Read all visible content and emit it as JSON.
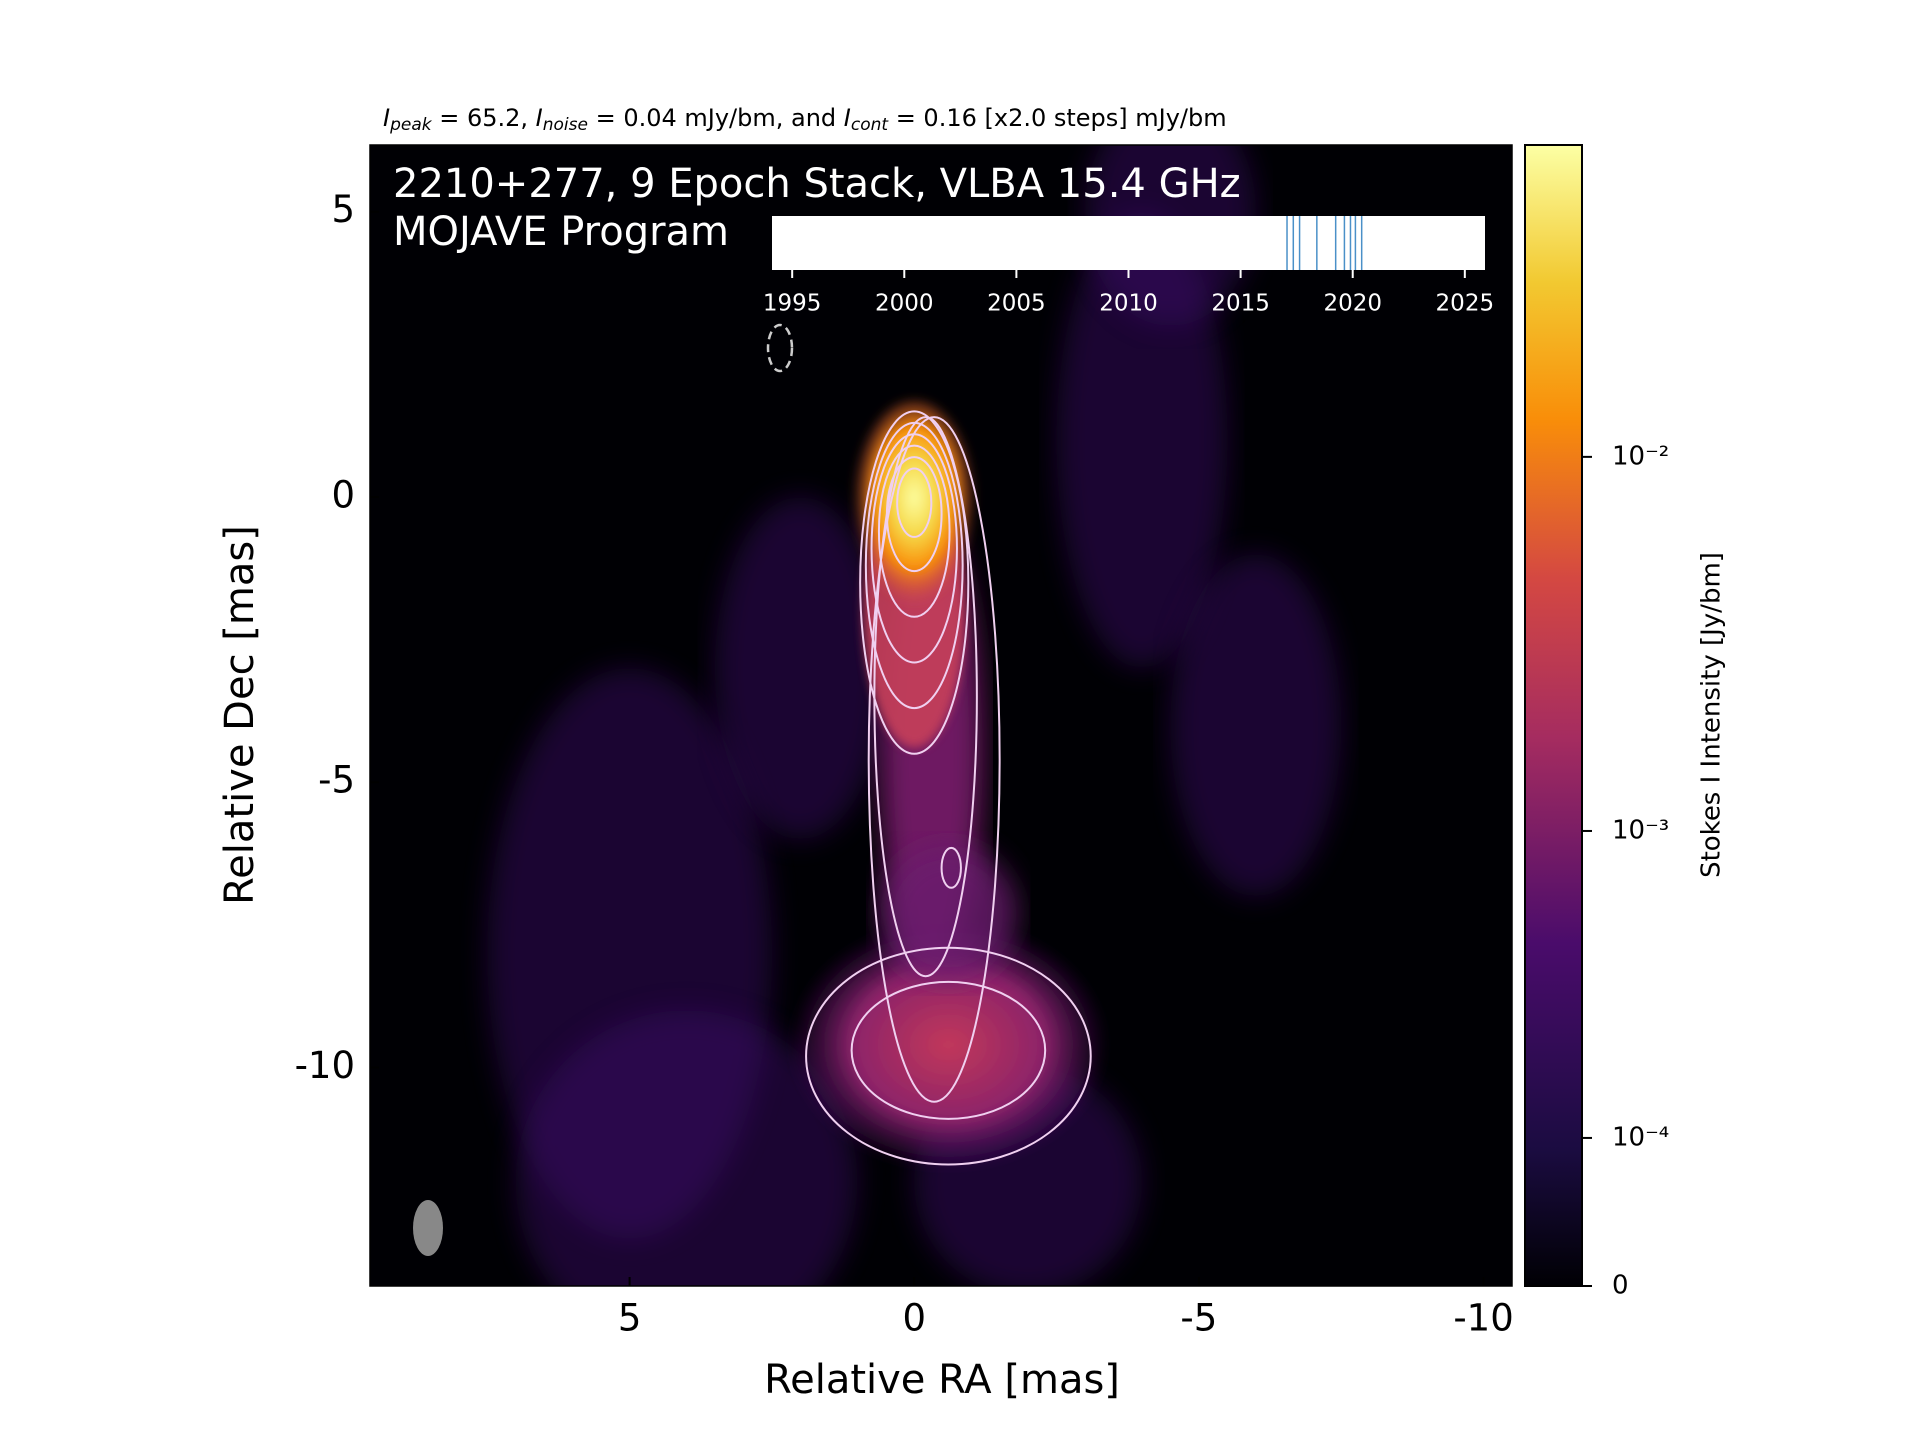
{
  "chart_data": {
    "type": "image",
    "title_parts": [
      "I",
      "peak",
      " = 65.2, ",
      "I",
      "noise",
      " = 0.04 mJy/bm, and ",
      "I",
      "cont",
      " = 0.16 [x2.0 steps] mJy/bm"
    ],
    "inset_title": "2210+277, 9 Epoch Stack, VLBA 15.4 GHz",
    "inset_subtitle": "MOJAVE Program",
    "x_label": "Relative RA [mas]",
    "y_label": "Relative Dec [mas]",
    "xlim": [
      9.56,
      -10.5
    ],
    "xticks": [
      5,
      0,
      -5,
      -10
    ],
    "ylim": [
      -13.83,
      6.17
    ],
    "yticks": [
      5,
      0,
      -5,
      -10
    ],
    "colorbar": {
      "label": "Stokes I Intensity [Jy/bm]",
      "clim": [
        0,
        0.0652
      ],
      "ticks": [
        0,
        {
          "value": 0.0001,
          "label": "10⁻⁴"
        },
        {
          "value": 0.001,
          "label": "10⁻³"
        },
        {
          "value": 0.01,
          "label": "10⁻²"
        }
      ]
    },
    "epochs": {
      "xlim": [
        1994.1,
        2025.9
      ],
      "xticks": [
        1995,
        2000,
        2005,
        2010,
        2015,
        2020,
        2025
      ],
      "values": [
        2017.07,
        2017.35,
        2017.63,
        2018.4,
        2019.24,
        2019.63,
        2019.9,
        2020.12,
        2020.4
      ],
      "color": "#4a90c8"
    }
  }
}
